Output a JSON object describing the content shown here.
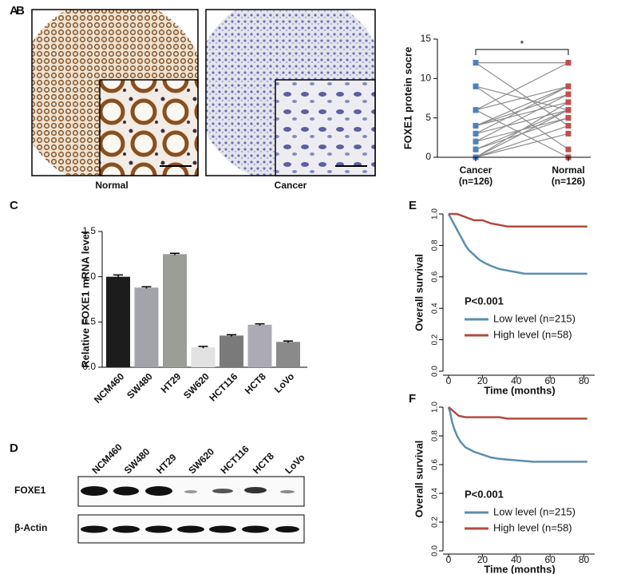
{
  "panels": {
    "a": {
      "letter": "A",
      "labels": [
        "Normal",
        "Cancer"
      ]
    },
    "d": {
      "letter": "D",
      "lanes": [
        "NCM460",
        "SW480",
        "HT29",
        "SW620",
        "HCT116",
        "HCT8",
        "LoVo"
      ],
      "rows": [
        "FOXE1",
        "β-Actin"
      ]
    }
  },
  "chart_data": [
    {
      "type": "paired",
      "letter": "B",
      "y_label": "FOXE1 protein socre",
      "categories": [
        "Cancer",
        "Normal"
      ],
      "category_notes": [
        "(n=126)",
        "(n=126)"
      ],
      "colors": [
        "#4f81bd",
        "#c0504d"
      ],
      "line_color": "#8c8c8c",
      "pairs": [
        [
          12,
          12
        ],
        [
          9,
          6
        ],
        [
          6,
          12
        ],
        [
          6,
          9
        ],
        [
          4,
          8
        ],
        [
          4,
          7
        ],
        [
          3,
          9
        ],
        [
          2,
          5
        ],
        [
          1,
          6
        ],
        [
          0,
          4
        ],
        [
          0,
          3
        ],
        [
          6,
          0
        ],
        [
          9,
          1
        ],
        [
          12,
          4
        ],
        [
          3,
          6
        ],
        [
          2,
          8
        ],
        [
          1,
          5
        ],
        [
          0,
          7
        ],
        [
          4,
          9
        ],
        [
          0,
          6
        ]
      ],
      "annotation": "*",
      "ylim": [
        0,
        15
      ],
      "yticks": [
        0,
        5,
        10,
        15
      ]
    },
    {
      "type": "bar",
      "letter": "C",
      "y_label": "Relative FOXE1 mRNA level",
      "categories": [
        "NCM460",
        "SW480",
        "HT29",
        "SW620",
        "HCT116",
        "HCT8",
        "LoVo"
      ],
      "values": [
        1.0,
        0.88,
        1.25,
        0.22,
        0.35,
        0.47,
        0.28
      ],
      "errors": [
        0.02,
        0.01,
        0.01,
        0.01,
        0.01,
        0.01,
        0.01
      ],
      "colors": [
        "#1c1c1c",
        "#a3a3ab",
        "#9b9d99",
        "#e2e2e2",
        "#7a7a7a",
        "#acabb4",
        "#8a8a8a"
      ],
      "ylim": [
        0,
        1.5
      ],
      "yticks": [
        {
          "value": 0,
          "label": "0.0"
        },
        0.5,
        {
          "value": 1,
          "label": "1.0"
        },
        1.5
      ]
    },
    {
      "type": "line",
      "letter": "E",
      "y_label": "Overall survival",
      "x_label": "Time (months)",
      "annotation": "P<0.001",
      "xlim": [
        0,
        84
      ],
      "xticks": [
        0,
        20,
        40,
        60,
        80
      ],
      "ylim": [
        0,
        1
      ],
      "yticks": [
        {
          "value": 0,
          "label": "0.0"
        },
        0.2,
        0.4,
        0.6,
        0.8,
        {
          "value": 1,
          "label": "1.0"
        }
      ],
      "series": [
        {
          "name": "Low level (n=215)",
          "color": "#5a8fae",
          "x": [
            0,
            2,
            4,
            6,
            8,
            10,
            12,
            15,
            18,
            21,
            25,
            30,
            35,
            40,
            45,
            50,
            60,
            70,
            82
          ],
          "values": [
            1,
            0.96,
            0.92,
            0.88,
            0.84,
            0.8,
            0.77,
            0.74,
            0.71,
            0.69,
            0.67,
            0.65,
            0.64,
            0.63,
            0.62,
            0.62,
            0.62,
            0.62,
            0.62
          ]
        },
        {
          "name": "High level (n=58)",
          "color": "#b34a3f",
          "x": [
            0,
            5,
            10,
            15,
            20,
            25,
            30,
            35,
            40,
            60,
            82
          ],
          "values": [
            1,
            1,
            0.98,
            0.96,
            0.96,
            0.94,
            0.93,
            0.92,
            0.92,
            0.92,
            0.92
          ]
        }
      ]
    },
    {
      "type": "line",
      "letter": "F",
      "y_label": "Overall survival",
      "x_label": "Time (months)",
      "annotation": "P<0.001",
      "xlim": [
        0,
        84
      ],
      "xticks": [
        0,
        20,
        40,
        60,
        80
      ],
      "ylim": [
        0,
        1
      ],
      "yticks": [
        {
          "value": 0,
          "label": "0.0"
        },
        0.2,
        0.4,
        0.6,
        0.8,
        {
          "value": 1,
          "label": "1.0"
        }
      ],
      "series": [
        {
          "name": "Low level (n=215)",
          "color": "#5a8fae",
          "x": [
            0,
            1,
            2,
            3,
            5,
            7,
            10,
            15,
            20,
            25,
            30,
            40,
            50,
            60,
            82
          ],
          "values": [
            1,
            0.96,
            0.9,
            0.86,
            0.8,
            0.76,
            0.72,
            0.69,
            0.67,
            0.65,
            0.64,
            0.63,
            0.62,
            0.62,
            0.62
          ]
        },
        {
          "name": "High level (n=58)",
          "color": "#b34a3f",
          "x": [
            0,
            2,
            4,
            6,
            10,
            20,
            30,
            35,
            40,
            60,
            82
          ],
          "values": [
            1,
            0.98,
            0.96,
            0.94,
            0.93,
            0.93,
            0.93,
            0.92,
            0.92,
            0.92,
            0.92
          ]
        }
      ]
    }
  ]
}
